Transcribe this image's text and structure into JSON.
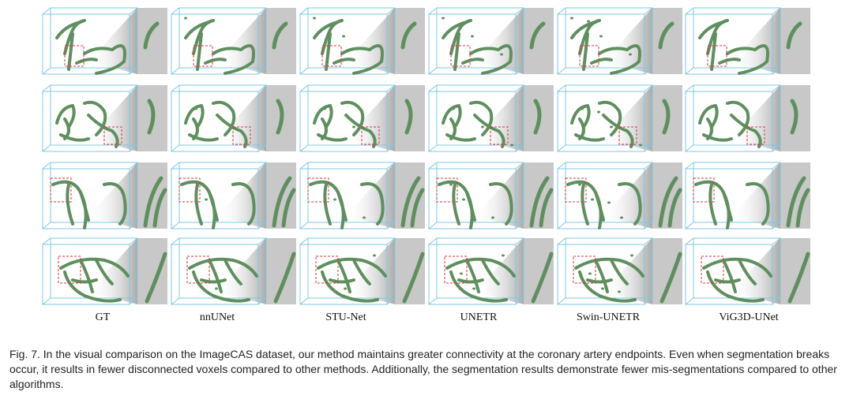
{
  "figure": {
    "methods": [
      "GT",
      "nnUNet",
      "STU-Net",
      "UNETR",
      "Swin-UNETR",
      "ViG3D-UNet"
    ],
    "rows": 4,
    "caption": "Fig. 7.   In the visual comparison on the ImageCAS dataset, our method maintains greater connectivity at the coronary artery endpoints. Even when segmentation breaks occur, it results in fewer disconnected voxels compared to other methods. Additionally, the segmentation results demonstrate fewer mis-segmentations compared to other algorithms.",
    "colors": {
      "box": "#7ec8e3",
      "vessel": "#5f8f5f",
      "highlight": "#d9363e",
      "panel": "#c8c8c8"
    }
  }
}
